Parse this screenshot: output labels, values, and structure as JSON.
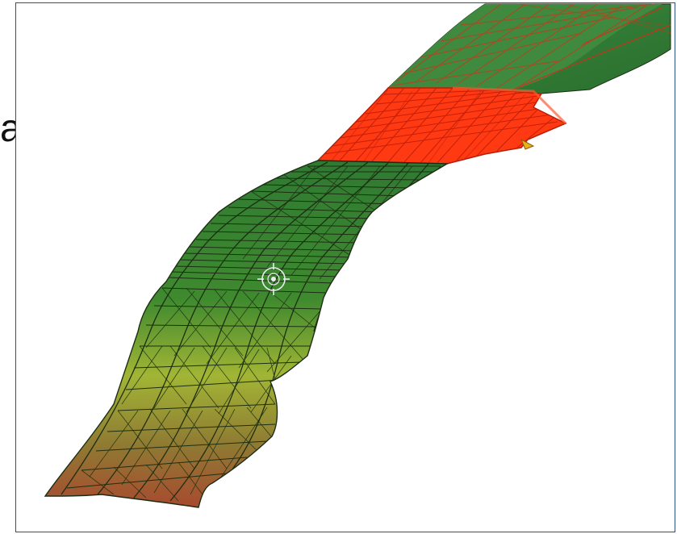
{
  "side_label": "a",
  "mesh": {
    "colors": {
      "fill_top": "#2f7a32",
      "fill_mid": "#3f8a2f",
      "fill_yellow": "#a2b535",
      "fill_bottom": "#a84a2f",
      "edge": "#1c2e12",
      "selected_fill": "#ff3a12",
      "selected_edge": "#c41f0a",
      "marker": "#e7b218"
    },
    "cursor_icon": "target-crosshair-icon"
  }
}
